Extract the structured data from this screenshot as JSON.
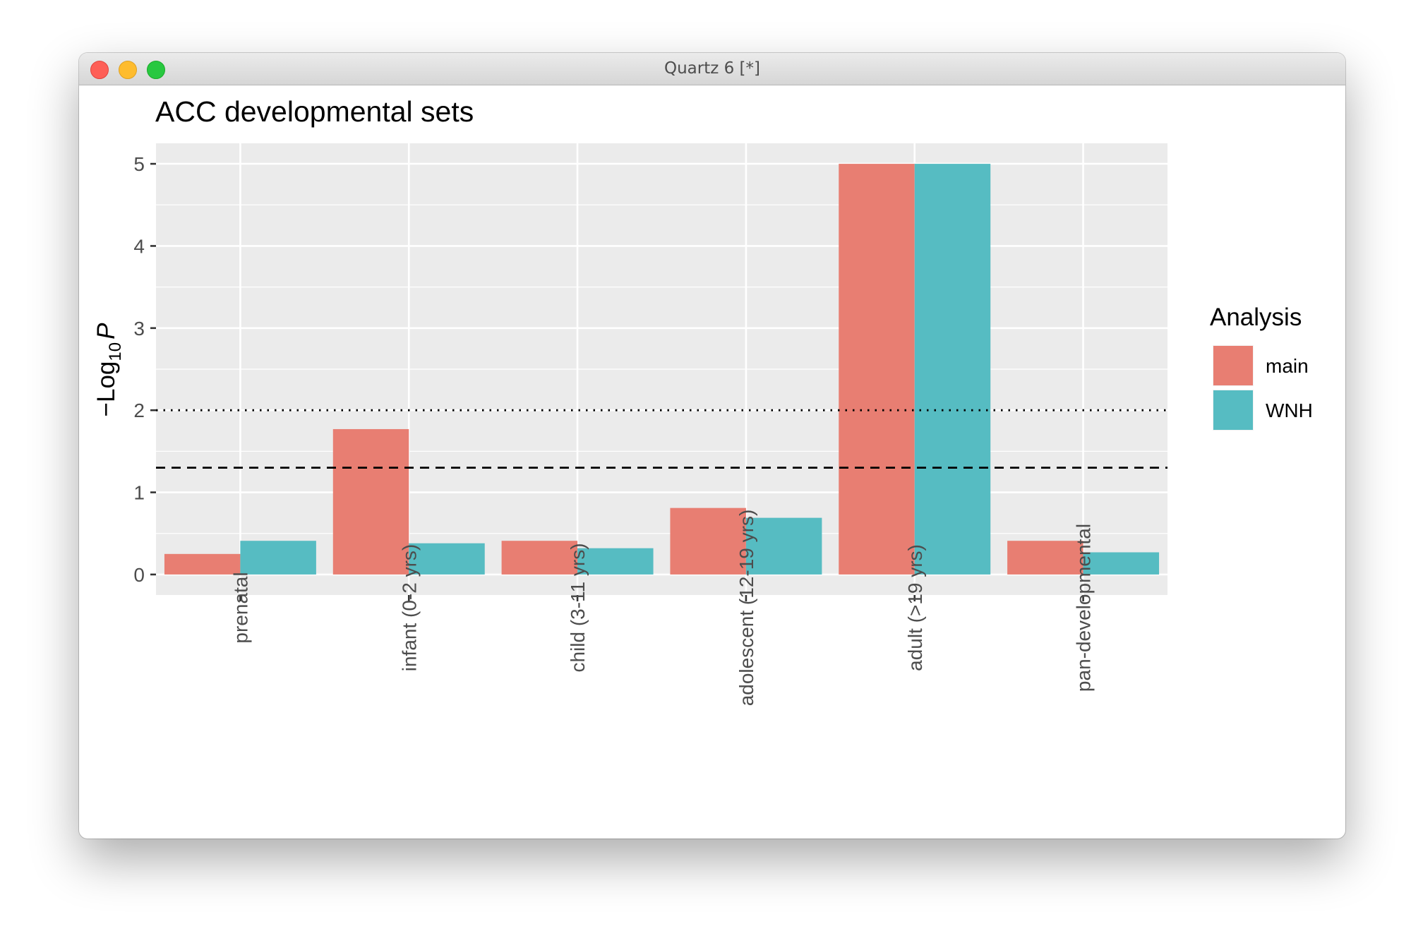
{
  "window": {
    "title": "Quartz 6 [*]"
  },
  "chart_data": {
    "type": "bar",
    "title": "ACC developmental sets",
    "xlabel": "",
    "ylabel_prefix": "−Log",
    "ylabel_sub": "10",
    "ylabel_var": "P",
    "categories": [
      "prenatal",
      "infant (0-2 yrs)",
      "child (3-11 yrs)",
      "adolescent (12-19 yrs)",
      "adult (>19 yrs)",
      "pan-developmental"
    ],
    "series": [
      {
        "name": "main",
        "color": "#e87e72",
        "values": [
          0.25,
          1.77,
          0.41,
          0.81,
          5.0,
          0.41
        ]
      },
      {
        "name": "WNH",
        "color": "#56bcc2",
        "values": [
          0.41,
          0.38,
          0.32,
          0.69,
          5.0,
          0.27
        ]
      }
    ],
    "ylim": [
      -0.25,
      5.25
    ],
    "yticks": [
      "0",
      "1",
      "2",
      "3",
      "4",
      "5"
    ],
    "reference_lines": [
      {
        "y": 2.0,
        "style": "dotted"
      },
      {
        "y": 1.3,
        "style": "dashed"
      }
    ],
    "legend": {
      "title": "Analysis",
      "position": "right"
    },
    "grid": true,
    "panel_background": "#ebebeb"
  }
}
